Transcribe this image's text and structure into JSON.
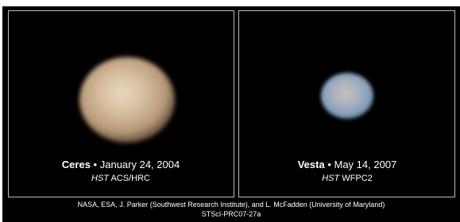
{
  "separator": "•",
  "panels": [
    {
      "name": "Ceres",
      "date": "January 24, 2004",
      "telescope": "HST",
      "instrument": "ACS/HRC"
    },
    {
      "name": "Vesta",
      "date": "May 14, 2007",
      "telescope": "HST",
      "instrument": "WFPC2"
    }
  ],
  "credit": "NASA, ESA, J. Parker (Southwest Research Institute), and L. McFadden (University of Maryland)",
  "release_id": "STScI-PRC07-27a"
}
